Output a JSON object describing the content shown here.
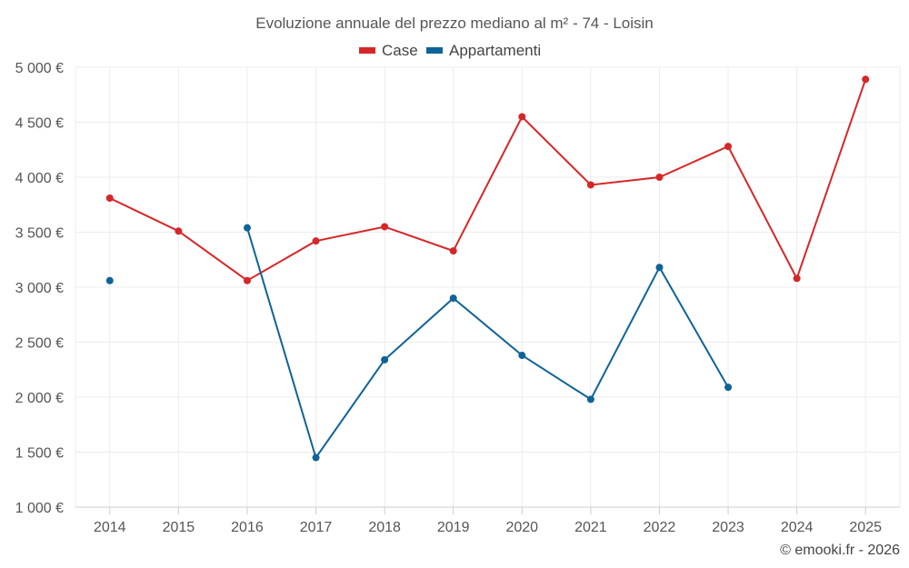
{
  "chart_data": {
    "type": "line",
    "title": "Evoluzione annuale del prezzo mediano al m² - 74 - Loisin",
    "categories": [
      "2014",
      "2015",
      "2016",
      "2017",
      "2018",
      "2019",
      "2020",
      "2021",
      "2022",
      "2023",
      "2024",
      "2025"
    ],
    "ylim": [
      1000,
      5000
    ],
    "yticks": [
      1000,
      1500,
      2000,
      2500,
      3000,
      3500,
      4000,
      4500,
      5000
    ],
    "ytick_labels": [
      "1 000 €",
      "1 500 €",
      "2 000 €",
      "2 500 €",
      "3 000 €",
      "3 500 €",
      "4 000 €",
      "4 500 €",
      "5 000 €"
    ],
    "grid": true,
    "legend_position": "top-center",
    "series": [
      {
        "name": "Case",
        "color": "#d62728",
        "values": [
          3810,
          3510,
          3060,
          3420,
          3550,
          3330,
          4550,
          3930,
          4000,
          4280,
          3080,
          4890
        ]
      },
      {
        "name": "Appartamenti",
        "color": "#0e6399",
        "values": [
          3060,
          null,
          3540,
          1450,
          2340,
          2900,
          2380,
          1980,
          3180,
          2090,
          null,
          null
        ]
      }
    ]
  },
  "credit": "© emooki.fr - 2026"
}
